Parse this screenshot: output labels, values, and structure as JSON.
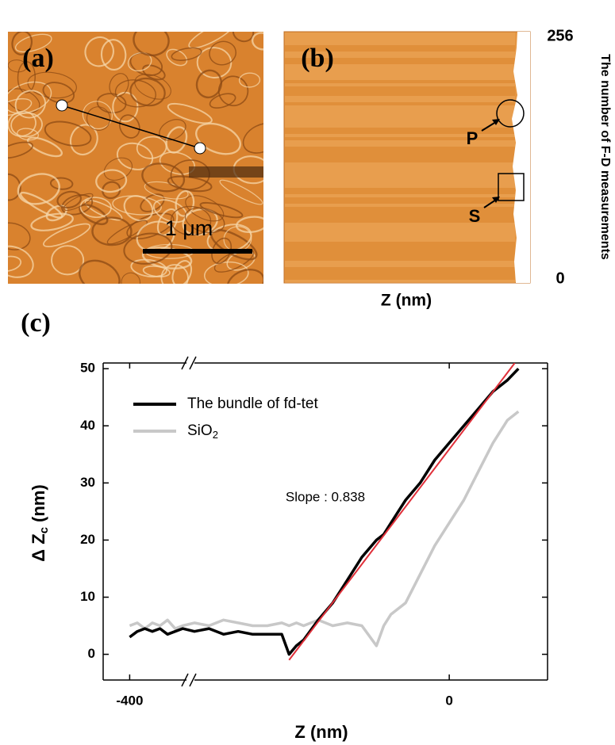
{
  "chart_data": [
    {
      "type": "image",
      "label": "(a)",
      "scale_bar": "1 μm"
    },
    {
      "type": "image",
      "label": "(b)",
      "ylim": [
        0,
        256
      ],
      "yticks": [
        0,
        256
      ],
      "ylabel": "The number of F-D measurements",
      "xlabel": "Z (nm)",
      "annotations": [
        "P",
        "S"
      ]
    },
    {
      "type": "line",
      "label": "(c)",
      "xlabel": "Z (nm)",
      "ylabel": "Δ Z",
      "ylabel_sub": "c",
      "ylabel_unit": "(nm)",
      "xlim": [
        -407,
        27
      ],
      "xbreak": [
        -385,
        -70
      ],
      "xticks": [
        -400,
        0
      ],
      "ylim": [
        -4.5,
        51
      ],
      "yticks": [
        0,
        10,
        20,
        30,
        40,
        50
      ],
      "x": [
        -400,
        -398,
        -396,
        -394,
        -392,
        -390,
        -388,
        -386,
        -70,
        -66,
        -62,
        -58,
        -54,
        -50,
        -46,
        -44,
        -42,
        -40,
        -36,
        -32,
        -28,
        -24,
        -20,
        -18,
        -16,
        -12,
        -8,
        -4,
        0,
        4,
        8,
        12,
        16,
        19
      ],
      "series": [
        {
          "name": "The bundle of fd-tet",
          "color": "#000000",
          "values": [
            3,
            4,
            4.5,
            4,
            4.5,
            3.5,
            4,
            4.5,
            4,
            4.5,
            3.5,
            4,
            3.5,
            3.5,
            3.5,
            0,
            1.5,
            2.5,
            6,
            9,
            13,
            17,
            20,
            21,
            23,
            27,
            30,
            34,
            37,
            40,
            43,
            46,
            48,
            50
          ]
        },
        {
          "name": "SiO",
          "name_sub": "2",
          "color": "#c8c8c8",
          "values": [
            5,
            5.5,
            4.5,
            5.5,
            5,
            6,
            4.5,
            5,
            5.5,
            5,
            6,
            5.5,
            5,
            5,
            5.5,
            5,
            5.5,
            5,
            6,
            5,
            5.5,
            5,
            1.5,
            5,
            7,
            9,
            14,
            19,
            23,
            27,
            32,
            37,
            41,
            42.5
          ]
        }
      ],
      "fit_line": {
        "x": [
          -44,
          18
        ],
        "y": [
          -1,
          51
        ],
        "color": "#e0303a"
      },
      "annotation": "Slope : 0.838"
    }
  ]
}
